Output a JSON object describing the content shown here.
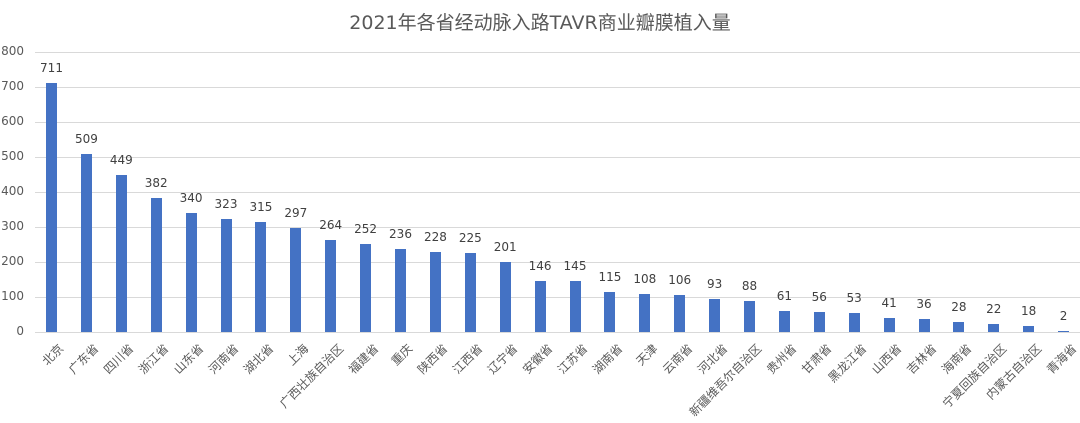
{
  "chart_data": {
    "type": "bar",
    "title": "2021年各省经动脉入路TAVR商业瓣膜植入量",
    "xlabel": "",
    "ylabel": "",
    "ylim": [
      0,
      800
    ],
    "yticks": [
      0,
      100,
      200,
      300,
      400,
      500,
      600,
      700,
      800
    ],
    "grid": true,
    "legend": "none",
    "bar_color": "#4472c4",
    "categories": [
      "北京",
      "广东省",
      "四川省",
      "浙江省",
      "山东省",
      "河南省",
      "湖北省",
      "上海",
      "广西壮族自治区",
      "福建省",
      "重庆",
      "陕西省",
      "江西省",
      "辽宁省",
      "安徽省",
      "江苏省",
      "湖南省",
      "天津",
      "云南省",
      "河北省",
      "新疆维吾尔自治区",
      "贵州省",
      "甘肃省",
      "黑龙江省",
      "山西省",
      "吉林省",
      "海南省",
      "宁夏回族自治区",
      "内蒙古自治区",
      "青海省"
    ],
    "values": [
      711,
      509,
      449,
      382,
      340,
      323,
      315,
      297,
      264,
      252,
      236,
      228,
      225,
      201,
      146,
      145,
      115,
      108,
      106,
      93,
      88,
      61,
      56,
      53,
      41,
      36,
      28,
      22,
      18,
      2
    ]
  }
}
